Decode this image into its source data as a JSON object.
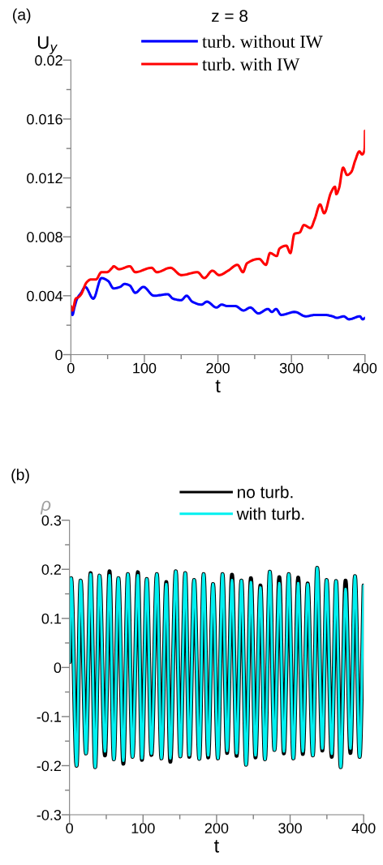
{
  "chart_data": [
    {
      "type": "line",
      "title": "z = 8",
      "xlabel": "t",
      "ylabel": "U$_{y}$",
      "annotations": [
        "(a)"
      ],
      "xlim": [
        0,
        400
      ],
      "xticks": [
        0,
        {
          "value": 50,
          "label": null
        },
        100,
        {
          "value": 150,
          "label": null
        },
        200,
        {
          "value": 250,
          "label": null
        },
        300,
        {
          "value": 350,
          "label": null
        },
        400
      ],
      "ylim": [
        0,
        0.02
      ],
      "yticks": [
        0,
        {
          "value": 0.002,
          "label": null
        },
        0.004,
        {
          "value": 0.006,
          "label": null
        },
        0.008,
        {
          "value": 0.01,
          "label": null
        },
        0.012,
        {
          "value": 0.014,
          "label": null
        },
        0.016,
        {
          "value": 0.018,
          "label": null
        },
        0.02
      ],
      "grid": false,
      "legend": "top",
      "marker": "none",
      "line_style": "solid",
      "series": [
        {
          "name": "turb. without IW",
          "color": "#0000ff",
          "x": [
            0,
            2.2,
            4.8,
            8.5,
            14,
            19.5,
            30.5,
            41.6,
            50.8,
            58,
            67,
            73,
            80,
            87.6,
            98.6,
            113,
            131.7,
            139,
            150,
            157.5,
            165,
            177.7,
            185,
            198,
            205,
            212.7,
            223.7,
            234.8,
            244,
            255,
            268,
            273.4,
            279,
            286,
            304.7,
            319.4,
            332.3,
            345,
            356,
            361.7,
            371,
            378.3,
            393,
            396.9,
            400
          ],
          "values": [
            0.0032,
            0.0027,
            0.0032,
            0.0038,
            0.0042,
            0.0046,
            0.0038,
            0.0052,
            0.005,
            0.0045,
            0.0046,
            0.0048,
            0.0047,
            0.0042,
            0.0046,
            0.004,
            0.0041,
            0.0038,
            0.0037,
            0.004,
            0.0036,
            0.0034,
            0.0036,
            0.0032,
            0.0034,
            0.0033,
            0.0033,
            0.003,
            0.0032,
            0.0028,
            0.0031,
            0.0029,
            0.0031,
            0.0027,
            0.0029,
            0.0026,
            0.0027,
            0.0027,
            0.0026,
            0.0025,
            0.0026,
            0.0024,
            0.0026,
            0.0024,
            0.0025
          ]
        },
        {
          "name": "turb. with IW",
          "color": "#ff0000",
          "x": [
            0,
            2.2,
            6.6,
            10.3,
            14,
            21.3,
            26.9,
            34,
            41.6,
            49,
            56.3,
            58.2,
            65.5,
            80.2,
            87.6,
            109.7,
            117,
            135.4,
            150.2,
            172.3,
            181.4,
            192.5,
            201.7,
            213.8,
            226.6,
            234,
            239.5,
            256,
            265.3,
            270.8,
            280,
            283.7,
            293,
            298.5,
            304,
            311.3,
            316.9,
            326,
            331.6,
            338.9,
            344.5,
            353.7,
            359.2,
            361,
            364.7,
            370.2,
            375.7,
            381.3,
            386.8,
            392.3,
            396,
            399.6,
            400
          ],
          "values": [
            0.0033,
            0.003,
            0.0038,
            0.0039,
            0.0041,
            0.0049,
            0.0051,
            0.0051,
            0.0056,
            0.0056,
            0.0059,
            0.006,
            0.0058,
            0.006,
            0.0056,
            0.0059,
            0.0056,
            0.0059,
            0.0054,
            0.0056,
            0.0052,
            0.0057,
            0.0054,
            0.0057,
            0.0061,
            0.0056,
            0.0062,
            0.0065,
            0.0061,
            0.0069,
            0.0067,
            0.0072,
            0.0074,
            0.0069,
            0.0082,
            0.0083,
            0.0088,
            0.0086,
            0.0092,
            0.0102,
            0.0096,
            0.011,
            0.0114,
            0.0109,
            0.0113,
            0.0127,
            0.0122,
            0.0124,
            0.0132,
            0.0138,
            0.0136,
            0.014,
            0.0152
          ]
        }
      ]
    },
    {
      "type": "line",
      "xlabel": "t",
      "ylabel": "ρ",
      "annotations": [
        "(b)"
      ],
      "xlim": [
        0,
        400
      ],
      "xticks": [
        0,
        {
          "value": 50,
          "label": null
        },
        100,
        {
          "value": 150,
          "label": null
        },
        200,
        {
          "value": 250,
          "label": null
        },
        300,
        {
          "value": 350,
          "label": null
        },
        400
      ],
      "ylim": [
        -0.3,
        0.3
      ],
      "yticks": [
        -0.3,
        {
          "value": -0.25,
          "label": null
        },
        -0.2,
        {
          "value": -0.15,
          "label": null
        },
        -0.1,
        {
          "value": -0.05,
          "label": null
        },
        0,
        {
          "value": 0.05,
          "label": null
        },
        0.1,
        {
          "value": 0.15,
          "label": null
        },
        0.2,
        {
          "value": 0.25,
          "label": null
        },
        0.3
      ],
      "grid": false,
      "legend": "top",
      "marker": "none",
      "line_style": "solid",
      "x": [
        0,
        2.2,
        9.6,
        15.1,
        22.4,
        28.7,
        34.9,
        40.8,
        48.2,
        54.4,
        60.3,
        66.5,
        73.2,
        79.4,
        85.7,
        93.0,
        98.5,
        105.1,
        111.4,
        118.8,
        125.0,
        131.6,
        137.1,
        144.5,
        150.7,
        157.4,
        162.9,
        169.5,
        176.5,
        182.4,
        188.6,
        195.2,
        201.8,
        208.1,
        214.3,
        221.0,
        227.2,
        233.8,
        240.1,
        246.7,
        252.9,
        259.6,
        265.8,
        272.4,
        278.7,
        285.3,
        291.5,
        298.2,
        304.4,
        311.0,
        317.3,
        323.9,
        330.9,
        336.8,
        343.8,
        349.6,
        356.6,
        362.5,
        368.8,
        375.4,
        382.0,
        388.2,
        394.5,
        400
      ],
      "series": [
        {
          "name": "no turb.",
          "color": "#000000",
          "values": [
            0.011,
            0.182,
            -0.2,
            0.177,
            -0.175,
            0.192,
            -0.203,
            0.187,
            -0.179,
            0.196,
            -0.187,
            0.182,
            -0.196,
            0.19,
            -0.182,
            0.194,
            -0.188,
            0.18,
            -0.178,
            0.19,
            -0.185,
            0.174,
            -0.192,
            0.196,
            -0.181,
            0.192,
            -0.182,
            0.178,
            -0.186,
            0.19,
            -0.183,
            0.17,
            -0.185,
            0.19,
            -0.174,
            0.189,
            -0.18,
            0.177,
            -0.198,
            0.182,
            -0.183,
            0.167,
            -0.187,
            0.195,
            -0.168,
            0.184,
            -0.175,
            0.19,
            -0.185,
            0.183,
            -0.176,
            0.171,
            -0.179,
            0.203,
            -0.169,
            0.178,
            -0.182,
            0.176,
            -0.203,
            0.177,
            -0.174,
            0.186,
            -0.182,
            0.167
          ]
        },
        {
          "name": "with turb.",
          "color": "#00f0f0",
          "values": [
            0.011,
            0.182,
            -0.2,
            0.177,
            -0.175,
            0.19,
            -0.203,
            0.187,
            -0.171,
            0.188,
            -0.187,
            0.182,
            -0.19,
            0.19,
            -0.182,
            0.188,
            -0.185,
            0.18,
            -0.176,
            0.19,
            -0.185,
            0.17,
            -0.185,
            0.196,
            -0.181,
            0.192,
            -0.179,
            0.178,
            -0.186,
            0.19,
            -0.179,
            0.17,
            -0.185,
            0.19,
            -0.17,
            0.178,
            -0.175,
            0.177,
            -0.198,
            0.174,
            -0.179,
            0.163,
            -0.187,
            0.195,
            -0.168,
            0.172,
            -0.171,
            0.19,
            -0.185,
            0.172,
            -0.171,
            0.17,
            -0.179,
            0.203,
            -0.165,
            0.178,
            -0.176,
            0.176,
            -0.203,
            0.16,
            -0.165,
            0.186,
            -0.182,
            0.167
          ]
        }
      ]
    }
  ]
}
